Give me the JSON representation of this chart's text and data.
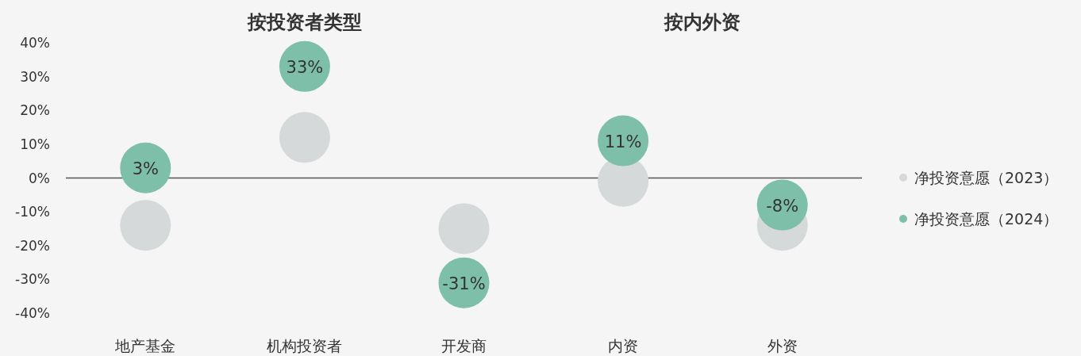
{
  "chart_data": {
    "type": "scatter",
    "categories": [
      "地产基金",
      "机构投资者",
      "开发商",
      "内资",
      "外资"
    ],
    "annotations": [
      "按投资者类型",
      "按内外资"
    ],
    "series": [
      {
        "name": "净投资意愿（2023）",
        "color": "#d5d9d9",
        "values": [
          -14,
          12,
          -15,
          -1,
          -14
        ]
      },
      {
        "name": "净投资意愿（2024）",
        "color": "#7dbfa9",
        "values": [
          3,
          33,
          -31,
          11,
          -8
        ],
        "value_labels": [
          "3%",
          "33%",
          "-31%",
          "11%",
          "-8%"
        ]
      }
    ],
    "ylim": [
      -40,
      40
    ],
    "yticks": [
      {
        "value": 40,
        "label": "40%"
      },
      {
        "value": 30,
        "label": "30%"
      },
      {
        "value": 20,
        "label": "20%"
      },
      {
        "value": 10,
        "label": "10%"
      },
      {
        "value": 0,
        "label": "0%"
      },
      {
        "value": -10,
        "label": "-10%"
      },
      {
        "value": -20,
        "label": "-20%"
      },
      {
        "value": -30,
        "label": "-30%"
      },
      {
        "value": -40,
        "label": "-40%"
      }
    ],
    "ref_lines": [
      {
        "axis": "y",
        "value": 0,
        "color": "#555555"
      }
    ],
    "grid": false,
    "legend": "right",
    "marker": "circle"
  }
}
